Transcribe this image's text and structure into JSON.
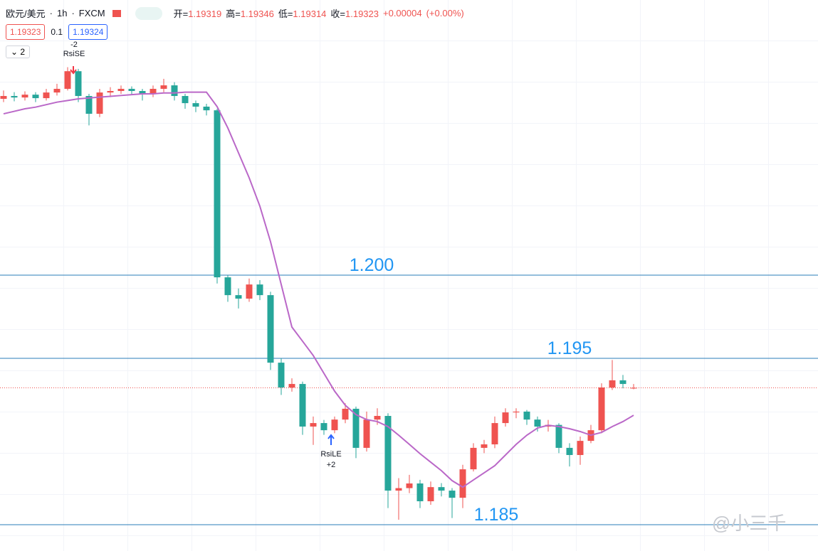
{
  "header": {
    "symbol": "欧元/美元",
    "interval": "1h",
    "source": "FXCM",
    "ohlc": [
      {
        "label": "开=",
        "value": "1.19319"
      },
      {
        "label": "高=",
        "value": "1.19346"
      },
      {
        "label": "低=",
        "value": "1.19314"
      },
      {
        "label": "收=",
        "value": "1.19323"
      }
    ],
    "change": "+0.00004",
    "change_percent": "(+0.00%)",
    "sell": "1.19323",
    "spread": "0.1",
    "buy": "1.19324",
    "indicators": "2"
  },
  "signals": [
    {
      "value": "-2",
      "label": "RsiSE"
    },
    {
      "value": "+2",
      "label": "RsiLE"
    }
  ],
  "watermark": "@小三千",
  "chart_data": {
    "type": "candlestick",
    "ylim": [
      1.18342,
      1.21654
    ],
    "up_color": "#ef5350",
    "down_color": "#26a69a",
    "open": [
      1.2106,
      1.21077,
      1.21068,
      1.21085,
      1.21064,
      1.21098,
      1.2112,
      1.21226,
      1.21077,
      1.2097,
      1.21098,
      1.21107,
      1.2112,
      1.21107,
      1.2109,
      1.2112,
      1.21141,
      1.21077,
      1.21034,
      1.21013,
      1.20991,
      1.19987,
      1.1988,
      1.19859,
      1.19944,
      1.1988,
      1.19474,
      1.19325,
      1.19346,
      1.1909,
      1.19111,
      1.19068,
      1.19132,
      1.19197,
      1.18962,
      1.19132,
      1.19154,
      1.18705,
      1.1872,
      1.18748,
      1.18641,
      1.18726,
      1.18705,
      1.18662,
      1.18833,
      1.18962,
      1.18983,
      1.19111,
      1.19175,
      1.1918,
      1.19132,
      1.1909,
      1.191,
      1.18962,
      1.18919,
      1.19004,
      1.19068,
      1.19325,
      1.19368,
      1.19319
    ],
    "high": [
      1.2111,
      1.211,
      1.21105,
      1.211,
      1.2112,
      1.2115,
      1.2125,
      1.2124,
      1.2109,
      1.2112,
      1.2113,
      1.2114,
      1.21135,
      1.2112,
      1.2114,
      1.2118,
      1.2116,
      1.2109,
      1.2105,
      1.2103,
      1.21,
      1.2,
      1.1992,
      1.1998,
      1.1997,
      1.199,
      1.195,
      1.1938,
      1.1936,
      1.1915,
      1.1913,
      1.1915,
      1.1923,
      1.1921,
      1.1918,
      1.192,
      1.1917,
      1.1878,
      1.188,
      1.1877,
      1.1876,
      1.1875,
      1.1872,
      1.1886,
      1.1899,
      1.1901,
      1.1915,
      1.192,
      1.192,
      1.1919,
      1.1915,
      1.1913,
      1.1911,
      1.1899,
      1.1903,
      1.191,
      1.1935,
      1.1949,
      1.194,
      1.19346
    ],
    "low": [
      1.2104,
      1.21045,
      1.2105,
      1.2104,
      1.2105,
      1.2108,
      1.2111,
      1.2104,
      1.209,
      1.2095,
      1.2107,
      1.2109,
      1.21085,
      1.2105,
      1.2107,
      1.211,
      1.2105,
      1.21,
      1.2098,
      1.2096,
      1.1995,
      1.1984,
      1.198,
      1.1984,
      1.1985,
      1.1943,
      1.1928,
      1.193,
      1.1904,
      1.1898,
      1.1904,
      1.1905,
      1.1911,
      1.189,
      1.1894,
      1.191,
      1.186,
      1.1853,
      1.1869,
      1.186,
      1.1862,
      1.1867,
      1.1854,
      1.186,
      1.1882,
      1.1893,
      1.1896,
      1.1909,
      1.1914,
      1.191,
      1.1906,
      1.1906,
      1.1893,
      1.1885,
      1.1886,
      1.1899,
      1.1905,
      1.1931,
      1.1932,
      1.19314
    ],
    "close": [
      1.21077,
      1.21068,
      1.21085,
      1.21064,
      1.21098,
      1.2112,
      1.21226,
      1.21077,
      1.2097,
      1.21098,
      1.21107,
      1.2112,
      1.21107,
      1.2109,
      1.2112,
      1.21141,
      1.21077,
      1.21034,
      1.21013,
      1.20991,
      1.19987,
      1.1988,
      1.19859,
      1.19944,
      1.1988,
      1.19474,
      1.19325,
      1.19346,
      1.1909,
      1.19111,
      1.19068,
      1.19132,
      1.19197,
      1.18962,
      1.19132,
      1.19154,
      1.18705,
      1.1872,
      1.18748,
      1.18641,
      1.18726,
      1.18705,
      1.18662,
      1.18833,
      1.18962,
      1.18983,
      1.19111,
      1.19175,
      1.1918,
      1.19132,
      1.1909,
      1.191,
      1.18962,
      1.18919,
      1.19004,
      1.19068,
      1.19325,
      1.19368,
      1.19346,
      1.19323
    ],
    "ma": {
      "color": "#ba68c8",
      "values": [
        1.2097,
        1.20985,
        1.21,
        1.2101,
        1.21025,
        1.2104,
        1.2105,
        1.2106,
        1.21065,
        1.2107,
        1.21075,
        1.2108,
        1.21085,
        1.2109,
        1.2109,
        1.21095,
        1.21095,
        1.211,
        1.211,
        1.211,
        1.21013,
        1.20885,
        1.20735,
        1.20585,
        1.20415,
        1.20201,
        1.19944,
        1.19688,
        1.19603,
        1.19517,
        1.1941,
        1.19303,
        1.19218,
        1.19162,
        1.19132,
        1.1912,
        1.1909,
        1.19038,
        1.18983,
        1.18927,
        1.18876,
        1.18825,
        1.18765,
        1.18726,
        1.18769,
        1.18812,
        1.18855,
        1.18919,
        1.18983,
        1.19038,
        1.19081,
        1.19098,
        1.1909,
        1.19077,
        1.1906,
        1.19038,
        1.19055,
        1.1909,
        1.1912,
        1.19158
      ]
    },
    "levels": [
      {
        "value": 1.2,
        "label": "1.200"
      },
      {
        "value": 1.195,
        "label": "1.195"
      },
      {
        "value": 1.185,
        "label": "1.185"
      }
    ],
    "level_color": "#2a7db8",
    "last_price": {
      "value": 1.19323,
      "color": "#ef5350"
    }
  }
}
